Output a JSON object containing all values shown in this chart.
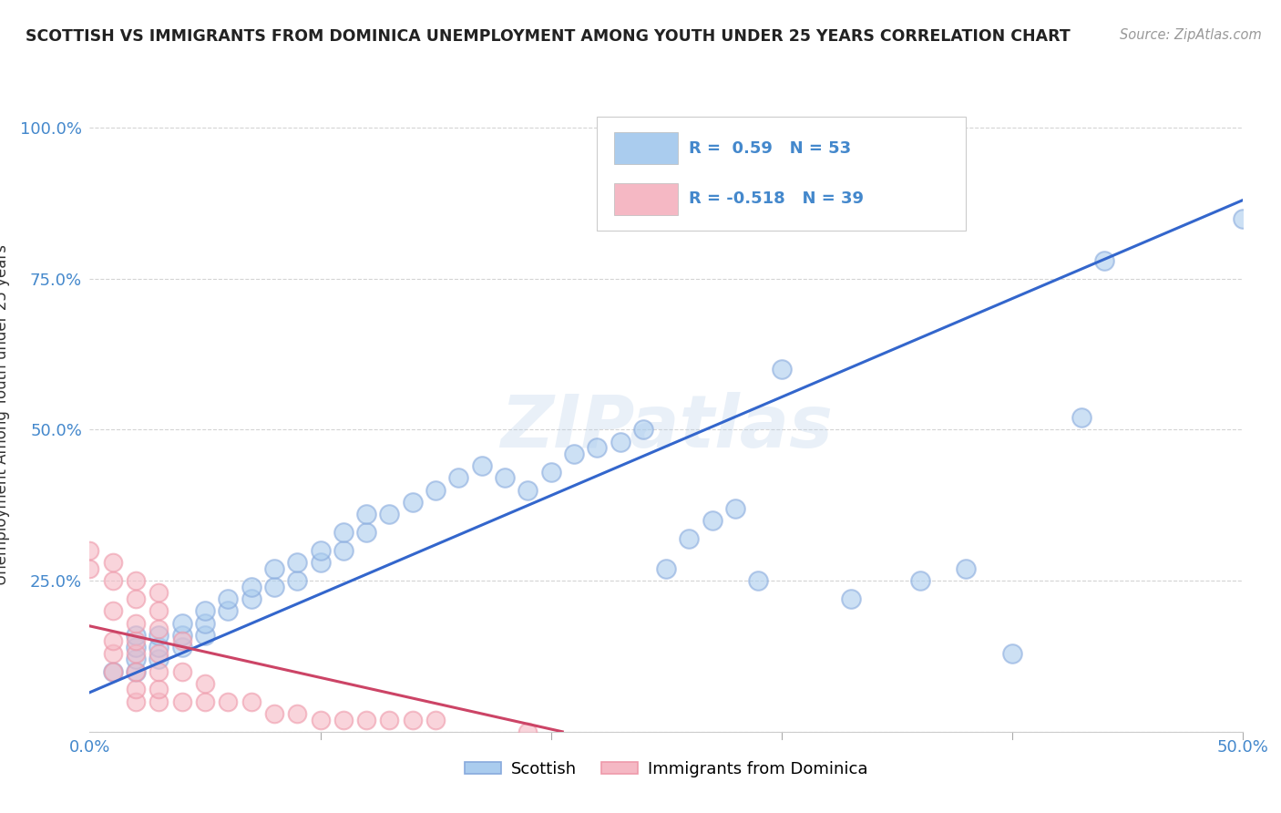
{
  "title": "SCOTTISH VS IMMIGRANTS FROM DOMINICA UNEMPLOYMENT AMONG YOUTH UNDER 25 YEARS CORRELATION CHART",
  "source": "Source: ZipAtlas.com",
  "ylabel": "Unemployment Among Youth under 25 years",
  "x_min": 0.0,
  "x_max": 0.5,
  "y_min": 0.0,
  "y_max": 1.05,
  "background_color": "#ffffff",
  "grid_color": "#d0d0d0",
  "blue_fill_color": "#aaccee",
  "blue_edge_color": "#88aadd",
  "pink_fill_color": "#f5b8c4",
  "pink_edge_color": "#ee99aa",
  "blue_line_color": "#3366cc",
  "pink_line_color": "#cc4466",
  "legend_blue_label": "Scottish",
  "legend_pink_label": "Immigrants from Dominica",
  "blue_R": 0.59,
  "blue_N": 53,
  "pink_R": -0.518,
  "pink_N": 39,
  "blue_line_x0": 0.0,
  "blue_line_y0": 0.065,
  "blue_line_x1": 0.5,
  "blue_line_y1": 0.88,
  "pink_line_x0": 0.0,
  "pink_line_y0": 0.175,
  "pink_line_x1": 0.205,
  "pink_line_y1": 0.0,
  "blue_scatter_x": [
    0.01,
    0.02,
    0.02,
    0.02,
    0.02,
    0.03,
    0.03,
    0.03,
    0.04,
    0.04,
    0.04,
    0.05,
    0.05,
    0.05,
    0.06,
    0.06,
    0.07,
    0.07,
    0.08,
    0.08,
    0.09,
    0.09,
    0.1,
    0.1,
    0.11,
    0.11,
    0.12,
    0.12,
    0.13,
    0.14,
    0.15,
    0.16,
    0.17,
    0.18,
    0.19,
    0.2,
    0.21,
    0.22,
    0.23,
    0.24,
    0.25,
    0.26,
    0.27,
    0.28,
    0.29,
    0.3,
    0.33,
    0.36,
    0.38,
    0.4,
    0.43,
    0.44,
    0.5
  ],
  "blue_scatter_y": [
    0.1,
    0.1,
    0.12,
    0.14,
    0.16,
    0.12,
    0.14,
    0.16,
    0.14,
    0.16,
    0.18,
    0.16,
    0.18,
    0.2,
    0.2,
    0.22,
    0.22,
    0.24,
    0.24,
    0.27,
    0.25,
    0.28,
    0.28,
    0.3,
    0.3,
    0.33,
    0.33,
    0.36,
    0.36,
    0.38,
    0.4,
    0.42,
    0.44,
    0.42,
    0.4,
    0.43,
    0.46,
    0.47,
    0.48,
    0.5,
    0.27,
    0.32,
    0.35,
    0.37,
    0.25,
    0.6,
    0.22,
    0.25,
    0.27,
    0.13,
    0.52,
    0.78,
    0.85
  ],
  "pink_scatter_x": [
    0.0,
    0.0,
    0.01,
    0.01,
    0.01,
    0.01,
    0.01,
    0.01,
    0.02,
    0.02,
    0.02,
    0.02,
    0.02,
    0.02,
    0.02,
    0.02,
    0.03,
    0.03,
    0.03,
    0.03,
    0.03,
    0.03,
    0.03,
    0.04,
    0.04,
    0.04,
    0.05,
    0.05,
    0.06,
    0.07,
    0.08,
    0.09,
    0.1,
    0.11,
    0.12,
    0.13,
    0.14,
    0.15,
    0.19
  ],
  "pink_scatter_y": [
    0.27,
    0.3,
    0.1,
    0.13,
    0.15,
    0.2,
    0.25,
    0.28,
    0.05,
    0.07,
    0.1,
    0.13,
    0.15,
    0.18,
    0.22,
    0.25,
    0.05,
    0.07,
    0.1,
    0.13,
    0.17,
    0.2,
    0.23,
    0.05,
    0.1,
    0.15,
    0.05,
    0.08,
    0.05,
    0.05,
    0.03,
    0.03,
    0.02,
    0.02,
    0.02,
    0.02,
    0.02,
    0.02,
    0.0
  ],
  "watermark": "ZIPatlas"
}
